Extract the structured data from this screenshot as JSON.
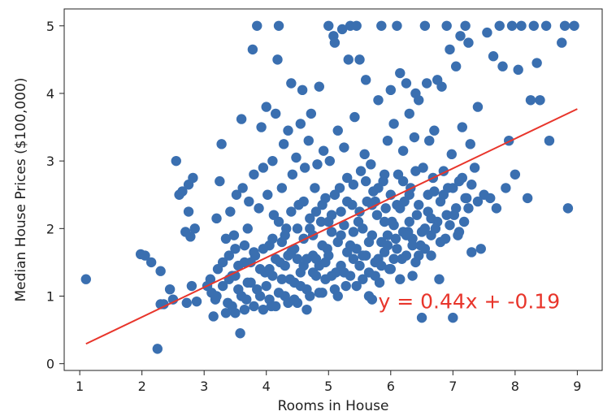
{
  "chart_data": {
    "type": "scatter",
    "title": "",
    "xlabel": "Rooms in House",
    "ylabel": "Median House Prices ($100,000)",
    "xlim": [
      0.75,
      9.4
    ],
    "ylim": [
      -0.1,
      5.25
    ],
    "xticks": [
      1,
      2,
      3,
      4,
      5,
      6,
      7,
      8,
      9
    ],
    "yticks": [
      0,
      1,
      2,
      3,
      4,
      5
    ],
    "grid": false,
    "legend": "none",
    "colors": {
      "points": "#3a6fb0",
      "line": "#e8352b"
    },
    "regression": {
      "slope": 0.44,
      "intercept": -0.19,
      "x_range": [
        1.1,
        9.0
      ],
      "label": "y = 0.44x + -0.19"
    },
    "points": [
      [
        1.1,
        1.25
      ],
      [
        1.98,
        1.62
      ],
      [
        2.05,
        1.6
      ],
      [
        2.15,
        1.5
      ],
      [
        2.25,
        0.22
      ],
      [
        2.3,
        1.37
      ],
      [
        2.3,
        0.88
      ],
      [
        2.35,
        0.88
      ],
      [
        2.45,
        1.1
      ],
      [
        2.5,
        0.95
      ],
      [
        2.55,
        3.0
      ],
      [
        2.6,
        2.5
      ],
      [
        2.65,
        2.55
      ],
      [
        2.7,
        1.95
      ],
      [
        2.72,
        0.9
      ],
      [
        2.75,
        2.65
      ],
      [
        2.75,
        2.25
      ],
      [
        2.78,
        1.88
      ],
      [
        2.8,
        1.15
      ],
      [
        2.82,
        2.75
      ],
      [
        2.85,
        2.0
      ],
      [
        2.88,
        0.92
      ],
      [
        3.05,
        1.15
      ],
      [
        3.1,
        1.25
      ],
      [
        3.12,
        1.05
      ],
      [
        3.15,
        0.7
      ],
      [
        3.18,
        0.95
      ],
      [
        3.2,
        2.15
      ],
      [
        3.22,
        1.4
      ],
      [
        3.25,
        2.7
      ],
      [
        3.28,
        3.25
      ],
      [
        3.3,
        1.15
      ],
      [
        3.35,
        1.85
      ],
      [
        3.38,
        0.9
      ],
      [
        3.4,
        1.6
      ],
      [
        3.42,
        2.25
      ],
      [
        3.45,
        1.3
      ],
      [
        3.48,
        1.9
      ],
      [
        3.5,
        0.75
      ],
      [
        3.52,
        2.5
      ],
      [
        3.55,
        1.1
      ],
      [
        3.58,
        0.45
      ],
      [
        3.6,
        3.62
      ],
      [
        3.62,
        2.6
      ],
      [
        3.65,
        1.5
      ],
      [
        3.68,
        0.95
      ],
      [
        3.7,
        2.0
      ],
      [
        3.72,
        2.4
      ],
      [
        3.75,
        1.2
      ],
      [
        3.78,
        4.65
      ],
      [
        3.8,
        2.8
      ],
      [
        3.82,
        1.6
      ],
      [
        3.85,
        5.0
      ],
      [
        3.88,
        2.3
      ],
      [
        3.9,
        1.0
      ],
      [
        3.92,
        3.5
      ],
      [
        3.95,
        2.9
      ],
      [
        3.98,
        1.35
      ],
      [
        4.0,
        3.8
      ],
      [
        4.02,
        2.5
      ],
      [
        4.05,
        1.75
      ],
      [
        4.08,
        0.85
      ],
      [
        4.1,
        3.0
      ],
      [
        4.12,
        2.2
      ],
      [
        4.15,
        3.7
      ],
      [
        4.18,
        4.5
      ],
      [
        4.2,
        5.0
      ],
      [
        4.22,
        1.5
      ],
      [
        4.25,
        2.6
      ],
      [
        4.28,
        3.25
      ],
      [
        4.3,
        1.0
      ],
      [
        4.32,
        2.0
      ],
      [
        4.35,
        3.45
      ],
      [
        4.38,
        1.25
      ],
      [
        4.4,
        4.15
      ],
      [
        4.42,
        2.8
      ],
      [
        4.45,
        1.7
      ],
      [
        4.48,
        3.05
      ],
      [
        4.5,
        0.9
      ],
      [
        4.52,
        2.35
      ],
      [
        4.55,
        3.55
      ],
      [
        4.58,
        4.05
      ],
      [
        4.6,
        1.45
      ],
      [
        4.62,
        2.9
      ],
      [
        4.65,
        1.1
      ],
      [
        4.68,
        3.3
      ],
      [
        4.7,
        2.15
      ],
      [
        4.72,
        3.7
      ],
      [
        4.75,
        1.6
      ],
      [
        4.78,
        2.6
      ],
      [
        4.8,
        1.3
      ],
      [
        4.82,
        2.95
      ],
      [
        4.85,
        4.1
      ],
      [
        4.88,
        2.1
      ],
      [
        4.9,
        1.05
      ],
      [
        4.92,
        3.15
      ],
      [
        4.95,
        2.45
      ],
      [
        4.98,
        1.7
      ],
      [
        5.0,
        5.0
      ],
      [
        5.02,
        3.0
      ],
      [
        5.05,
        2.2
      ],
      [
        5.08,
        4.85
      ],
      [
        5.1,
        4.75
      ],
      [
        5.12,
        1.35
      ],
      [
        5.15,
        3.45
      ],
      [
        5.18,
        2.6
      ],
      [
        5.2,
        1.9
      ],
      [
        5.22,
        4.95
      ],
      [
        5.25,
        3.2
      ],
      [
        5.28,
        1.15
      ],
      [
        5.3,
        2.75
      ],
      [
        5.32,
        4.5
      ],
      [
        5.35,
        5.0
      ],
      [
        5.38,
        2.35
      ],
      [
        5.4,
        1.55
      ],
      [
        5.42,
        3.65
      ],
      [
        5.45,
        5.0
      ],
      [
        5.48,
        2.1
      ],
      [
        5.5,
        4.5
      ],
      [
        5.52,
        2.85
      ],
      [
        5.55,
        1.25
      ],
      [
        5.58,
        3.1
      ],
      [
        5.6,
        4.2
      ],
      [
        5.62,
        2.4
      ],
      [
        5.65,
        1.8
      ],
      [
        5.68,
        2.95
      ],
      [
        5.7,
        0.95
      ],
      [
        5.72,
        2.55
      ],
      [
        5.75,
        1.5
      ],
      [
        5.78,
        2.2
      ],
      [
        5.8,
        3.9
      ],
      [
        5.82,
        1.2
      ],
      [
        5.85,
        5.0
      ],
      [
        5.88,
        2.7
      ],
      [
        5.9,
        1.65
      ],
      [
        5.92,
        2.3
      ],
      [
        5.95,
        3.3
      ],
      [
        5.98,
        1.4
      ],
      [
        6.0,
        4.05
      ],
      [
        6.02,
        2.1
      ],
      [
        6.05,
        3.55
      ],
      [
        6.08,
        1.85
      ],
      [
        6.1,
        5.0
      ],
      [
        6.12,
        2.8
      ],
      [
        6.15,
        4.3
      ],
      [
        6.18,
        1.55
      ],
      [
        6.2,
        3.15
      ],
      [
        6.22,
        2.4
      ],
      [
        6.25,
        4.15
      ],
      [
        6.28,
        1.95
      ],
      [
        6.3,
        3.7
      ],
      [
        6.32,
        2.6
      ],
      [
        6.35,
        1.3
      ],
      [
        6.38,
        3.35
      ],
      [
        6.4,
        4.0
      ],
      [
        6.42,
        2.2
      ],
      [
        6.45,
        3.9
      ],
      [
        6.48,
        1.75
      ],
      [
        6.5,
        0.68
      ],
      [
        6.52,
        2.9
      ],
      [
        6.55,
        5.0
      ],
      [
        6.58,
        4.15
      ],
      [
        6.6,
        2.5
      ],
      [
        6.62,
        3.3
      ],
      [
        6.65,
        1.6
      ],
      [
        6.68,
        2.75
      ],
      [
        6.7,
        3.45
      ],
      [
        6.72,
        2.0
      ],
      [
        6.75,
        4.2
      ],
      [
        6.78,
        1.25
      ],
      [
        6.8,
        2.4
      ],
      [
        6.82,
        4.1
      ],
      [
        6.85,
        2.85
      ],
      [
        6.88,
        1.85
      ],
      [
        6.9,
        5.0
      ],
      [
        6.92,
        2.6
      ],
      [
        6.95,
        4.65
      ],
      [
        6.98,
        3.1
      ],
      [
        7.0,
        0.68
      ],
      [
        7.02,
        2.2
      ],
      [
        7.05,
        4.4
      ],
      [
        7.08,
        1.9
      ],
      [
        7.1,
        2.7
      ],
      [
        7.12,
        4.85
      ],
      [
        7.15,
        3.5
      ],
      [
        7.18,
        2.1
      ],
      [
        7.2,
        5.0
      ],
      [
        7.22,
        2.45
      ],
      [
        7.25,
        4.75
      ],
      [
        7.28,
        3.25
      ],
      [
        7.3,
        1.65
      ],
      [
        7.35,
        2.9
      ],
      [
        7.4,
        3.8
      ],
      [
        7.45,
        1.7
      ],
      [
        7.5,
        2.5
      ],
      [
        7.55,
        4.9
      ],
      [
        7.6,
        2.45
      ],
      [
        7.65,
        4.55
      ],
      [
        7.7,
        2.3
      ],
      [
        7.75,
        5.0
      ],
      [
        7.8,
        4.4
      ],
      [
        7.85,
        2.6
      ],
      [
        7.9,
        3.3
      ],
      [
        7.95,
        5.0
      ],
      [
        8.0,
        2.8
      ],
      [
        8.05,
        4.35
      ],
      [
        8.1,
        5.0
      ],
      [
        8.2,
        2.45
      ],
      [
        8.25,
        3.9
      ],
      [
        8.3,
        5.0
      ],
      [
        8.35,
        4.45
      ],
      [
        8.4,
        3.9
      ],
      [
        8.5,
        5.0
      ],
      [
        8.55,
        3.3
      ],
      [
        8.75,
        4.75
      ],
      [
        8.8,
        5.0
      ],
      [
        8.85,
        2.3
      ],
      [
        8.95,
        5.0
      ],
      [
        3.6,
        1.0
      ],
      [
        3.7,
        1.2
      ],
      [
        3.8,
        0.85
      ],
      [
        3.9,
        1.4
      ],
      [
        4.0,
        1.15
      ],
      [
        4.05,
        0.95
      ],
      [
        4.1,
        1.3
      ],
      [
        4.15,
        1.55
      ],
      [
        4.2,
        1.05
      ],
      [
        4.25,
        1.8
      ],
      [
        4.3,
        1.45
      ],
      [
        4.35,
        0.9
      ],
      [
        4.4,
        1.65
      ],
      [
        4.45,
        1.2
      ],
      [
        4.5,
        2.0
      ],
      [
        4.55,
        1.35
      ],
      [
        4.6,
        1.85
      ],
      [
        4.65,
        1.55
      ],
      [
        4.7,
        1.0
      ],
      [
        4.75,
        1.9
      ],
      [
        4.8,
        2.25
      ],
      [
        4.85,
        1.45
      ],
      [
        4.9,
        1.75
      ],
      [
        4.95,
        1.25
      ],
      [
        5.0,
        1.6
      ],
      [
        5.05,
        1.95
      ],
      [
        5.1,
        1.1
      ],
      [
        5.15,
        1.8
      ],
      [
        5.2,
        1.45
      ],
      [
        5.25,
        2.05
      ],
      [
        5.3,
        1.65
      ],
      [
        5.35,
        1.3
      ],
      [
        5.4,
        1.95
      ],
      [
        5.45,
        1.7
      ],
      [
        5.5,
        1.45
      ],
      [
        5.55,
        2.0
      ],
      [
        5.6,
        1.6
      ],
      [
        5.65,
        1.35
      ],
      [
        5.7,
        1.9
      ],
      [
        5.75,
        2.4
      ],
      [
        5.8,
        1.55
      ],
      [
        5.85,
        1.8
      ],
      [
        5.9,
        2.1
      ],
      [
        5.95,
        1.75
      ],
      [
        6.0,
        1.4
      ],
      [
        6.05,
        2.05
      ],
      [
        6.1,
        1.7
      ],
      [
        6.15,
        2.3
      ],
      [
        6.2,
        1.95
      ],
      [
        6.25,
        1.6
      ],
      [
        6.3,
        2.1
      ],
      [
        6.35,
        1.85
      ],
      [
        6.4,
        1.5
      ],
      [
        6.45,
        2.35
      ],
      [
        6.5,
        1.95
      ],
      [
        6.55,
        1.7
      ],
      [
        6.6,
        2.25
      ],
      [
        6.65,
        1.9
      ],
      [
        6.7,
        2.55
      ],
      [
        6.75,
        2.1
      ],
      [
        6.8,
        1.8
      ],
      [
        6.85,
        2.5
      ],
      [
        6.9,
        2.2
      ],
      [
        6.95,
        2.05
      ],
      [
        7.0,
        2.6
      ],
      [
        7.05,
        2.3
      ],
      [
        7.1,
        1.95
      ],
      [
        7.15,
        2.75
      ],
      [
        7.2,
        2.45
      ],
      [
        7.25,
        2.3
      ],
      [
        7.3,
        2.65
      ],
      [
        7.4,
        2.4
      ],
      [
        3.3,
        1.5
      ],
      [
        3.4,
        1.25
      ],
      [
        3.5,
        1.7
      ],
      [
        3.45,
        0.85
      ],
      [
        3.55,
        1.45
      ],
      [
        3.65,
        1.75
      ],
      [
        3.75,
        1.5
      ],
      [
        3.85,
        1.1
      ],
      [
        3.95,
        1.7
      ],
      [
        4.05,
        1.4
      ],
      [
        4.15,
        0.85
      ],
      [
        4.25,
        1.25
      ],
      [
        4.35,
        1.6
      ],
      [
        4.45,
        0.95
      ],
      [
        4.55,
        1.15
      ],
      [
        4.65,
        0.8
      ],
      [
        4.75,
        1.35
      ],
      [
        4.85,
        1.05
      ],
      [
        4.95,
        1.5
      ],
      [
        5.05,
        1.3
      ],
      [
        5.15,
        1.0
      ],
      [
        5.25,
        1.35
      ],
      [
        5.35,
        1.75
      ],
      [
        5.45,
        1.15
      ],
      [
        5.55,
        1.6
      ],
      [
        5.65,
        1.0
      ],
      [
        5.75,
        1.3
      ],
      [
        5.85,
        1.45
      ],
      [
        5.95,
        1.9
      ],
      [
        6.05,
        1.55
      ],
      [
        6.15,
        1.25
      ],
      [
        6.25,
        1.9
      ],
      [
        6.35,
        1.75
      ],
      [
        6.45,
        1.6
      ],
      [
        6.55,
        2.0
      ],
      [
        6.65,
        2.15
      ],
      [
        3.2,
        1.0
      ],
      [
        3.35,
        0.75
      ],
      [
        3.5,
        1.3
      ],
      [
        3.65,
        0.8
      ],
      [
        3.8,
        1.65
      ],
      [
        3.95,
        0.8
      ],
      [
        4.1,
        1.85
      ],
      [
        4.2,
        2.1
      ],
      [
        4.3,
        1.9
      ],
      [
        4.4,
        2.25
      ],
      [
        4.5,
        1.55
      ],
      [
        4.6,
        2.4
      ],
      [
        4.7,
        2.0
      ],
      [
        4.8,
        1.55
      ],
      [
        4.9,
        2.35
      ],
      [
        5.0,
        2.1
      ],
      [
        5.1,
        2.5
      ],
      [
        5.2,
        2.25
      ],
      [
        5.3,
        2.4
      ],
      [
        5.4,
        2.65
      ],
      [
        5.5,
        2.25
      ],
      [
        5.6,
        2.7
      ],
      [
        5.7,
        2.35
      ],
      [
        5.8,
        2.6
      ],
      [
        5.9,
        2.8
      ],
      [
        6.0,
        2.5
      ],
      [
        6.1,
        2.35
      ],
      [
        6.2,
        2.7
      ],
      [
        6.3,
        2.5
      ],
      [
        6.4,
        2.85
      ]
    ]
  }
}
